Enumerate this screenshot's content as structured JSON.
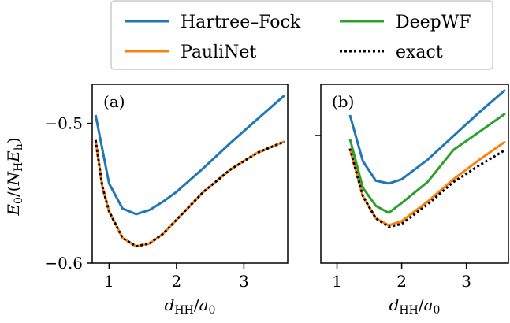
{
  "chart_data": [
    {
      "type": "line",
      "panel_label": "(a)",
      "xlabel": "d_HH/a_0",
      "ylabel": "E_0/(N_H E_h)",
      "xlim": [
        0.75,
        3.65
      ],
      "ylim": [
        -0.6,
        -0.472
      ],
      "xticks": [
        1,
        2,
        3
      ],
      "yticks": [
        -0.5,
        -0.6
      ],
      "xtick_labels": [
        "1",
        "2",
        "3"
      ],
      "ytick_labels": [
        "−0.5",
        "−0.6"
      ],
      "series": [
        {
          "name": "Hartree–Fock",
          "color": "#1f77b4",
          "style": "solid",
          "x": [
            0.8,
            1.0,
            1.2,
            1.4,
            1.6,
            1.8,
            2.0,
            2.4,
            2.8,
            3.2,
            3.6
          ],
          "y": [
            -0.494,
            -0.543,
            -0.561,
            -0.565,
            -0.562,
            -0.556,
            -0.549,
            -0.532,
            -0.514,
            -0.497,
            -0.48
          ]
        },
        {
          "name": "PauliNet",
          "color": "#ff7f0e",
          "style": "solid",
          "x": [
            0.8,
            0.9,
            1.0,
            1.2,
            1.4,
            1.6,
            1.8,
            2.0,
            2.4,
            2.8,
            3.2,
            3.6
          ],
          "y": [
            -0.512,
            -0.545,
            -0.563,
            -0.582,
            -0.588,
            -0.586,
            -0.579,
            -0.569,
            -0.549,
            -0.533,
            -0.521,
            -0.513
          ]
        },
        {
          "name": "exact",
          "color": "#000000",
          "style": "dotted",
          "x": [
            0.8,
            0.9,
            1.0,
            1.2,
            1.4,
            1.6,
            1.8,
            2.0,
            2.4,
            2.8,
            3.2,
            3.6
          ],
          "y": [
            -0.512,
            -0.545,
            -0.563,
            -0.582,
            -0.588,
            -0.586,
            -0.579,
            -0.569,
            -0.549,
            -0.533,
            -0.521,
            -0.513
          ]
        }
      ]
    },
    {
      "type": "line",
      "panel_label": "(b)",
      "xlabel": "d_HH/a_0",
      "xlim": [
        0.75,
        3.65
      ],
      "ylim": [
        -0.6,
        -0.472
      ],
      "xticks": [
        1,
        2,
        3
      ],
      "xtick_labels": [
        "1",
        "2",
        "3"
      ],
      "series": [
        {
          "name": "Hartree–Fock",
          "color": "#1f77b4",
          "style": "solid",
          "x": [
            1.2,
            1.4,
            1.6,
            1.8,
            2.0,
            2.4,
            2.8,
            3.2,
            3.6
          ],
          "y": [
            -0.494,
            -0.527,
            -0.541,
            -0.543,
            -0.54,
            -0.526,
            -0.509,
            -0.492,
            -0.476
          ]
        },
        {
          "name": "DeepWF",
          "color": "#2ca02c",
          "style": "solid",
          "x": [
            1.2,
            1.4,
            1.6,
            1.8,
            2.0,
            2.4,
            2.8,
            3.2,
            3.6
          ],
          "y": [
            -0.511,
            -0.546,
            -0.559,
            -0.564,
            -0.557,
            -0.542,
            -0.519,
            -0.506,
            -0.493
          ]
        },
        {
          "name": "PauliNet",
          "color": "#ff7f0e",
          "style": "solid",
          "x": [
            1.2,
            1.4,
            1.6,
            1.8,
            2.0,
            2.4,
            2.8,
            3.2,
            3.6
          ],
          "y": [
            -0.518,
            -0.552,
            -0.568,
            -0.573,
            -0.57,
            -0.556,
            -0.54,
            -0.526,
            -0.513
          ]
        },
        {
          "name": "exact",
          "color": "#000000",
          "style": "dotted",
          "x": [
            1.2,
            1.4,
            1.6,
            1.8,
            2.0,
            2.4,
            2.8,
            3.2,
            3.6
          ],
          "y": [
            -0.518,
            -0.552,
            -0.568,
            -0.574,
            -0.572,
            -0.558,
            -0.542,
            -0.53,
            -0.519
          ]
        }
      ]
    }
  ],
  "legend": {
    "placement": "top-center",
    "entries": [
      {
        "label": "Hartree–Fock",
        "color": "#1f77b4",
        "style": "solid"
      },
      {
        "label": "DeepWF",
        "color": "#2ca02c",
        "style": "solid"
      },
      {
        "label": "PauliNet",
        "color": "#ff7f0e",
        "style": "solid"
      },
      {
        "label": "exact",
        "color": "#000000",
        "style": "dotted"
      }
    ]
  }
}
